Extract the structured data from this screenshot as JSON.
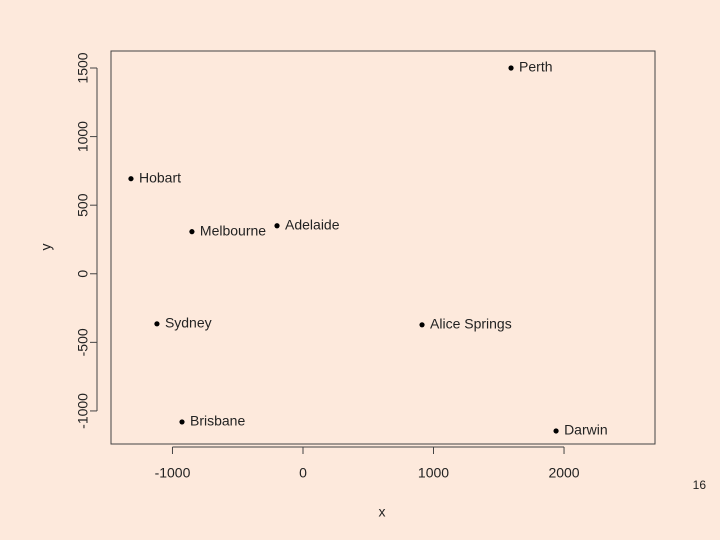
{
  "chart_data": {
    "type": "scatter",
    "x_label": "x",
    "y_label": "y",
    "labels": [
      "Perth",
      "Hobart",
      "Melbourne",
      "Adelaide",
      "Sydney",
      "Alice Springs",
      "Brisbane",
      "Darwin"
    ],
    "x": [
      1594,
      -1318,
      -851,
      -199,
      -1119,
      912,
      -927,
      1939
    ],
    "y": [
      1500,
      693,
      307,
      350,
      -365,
      -372,
      -1080,
      -1146
    ],
    "color": "#000000",
    "xlim": [
      -1471,
      2697
    ],
    "ylim": [
      -1241,
      1624
    ],
    "xticks": [
      -1000,
      0,
      1000,
      2000
    ],
    "yticks": [
      -1000,
      -500,
      0,
      500,
      1000,
      1500
    ]
  },
  "page_number": "16"
}
